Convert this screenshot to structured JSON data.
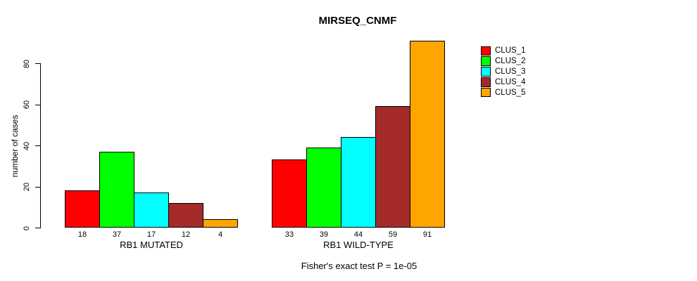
{
  "chart_data": {
    "type": "bar",
    "title": "MIRSEQ_CNMF",
    "xlabel": "",
    "ylabel": "number of cases",
    "ylim": [
      0,
      91
    ],
    "yticks": [
      0,
      20,
      40,
      60,
      80
    ],
    "grid": false,
    "legend_position": "right",
    "categories": [
      "CLUS_1",
      "CLUS_2",
      "CLUS_3",
      "CLUS_4",
      "CLUS_5"
    ],
    "colors": [
      "#FF0000",
      "#00FF00",
      "#00FFFF",
      "#A52A2A",
      "#FFA500"
    ],
    "groups": [
      {
        "label": "RB1 MUTATED",
        "values": [
          18,
          37,
          17,
          12,
          4
        ]
      },
      {
        "label": "RB1 WILD-TYPE",
        "values": [
          33,
          39,
          44,
          59,
          91
        ]
      }
    ],
    "footnote": "Fisher's exact test P = 1e-05"
  }
}
